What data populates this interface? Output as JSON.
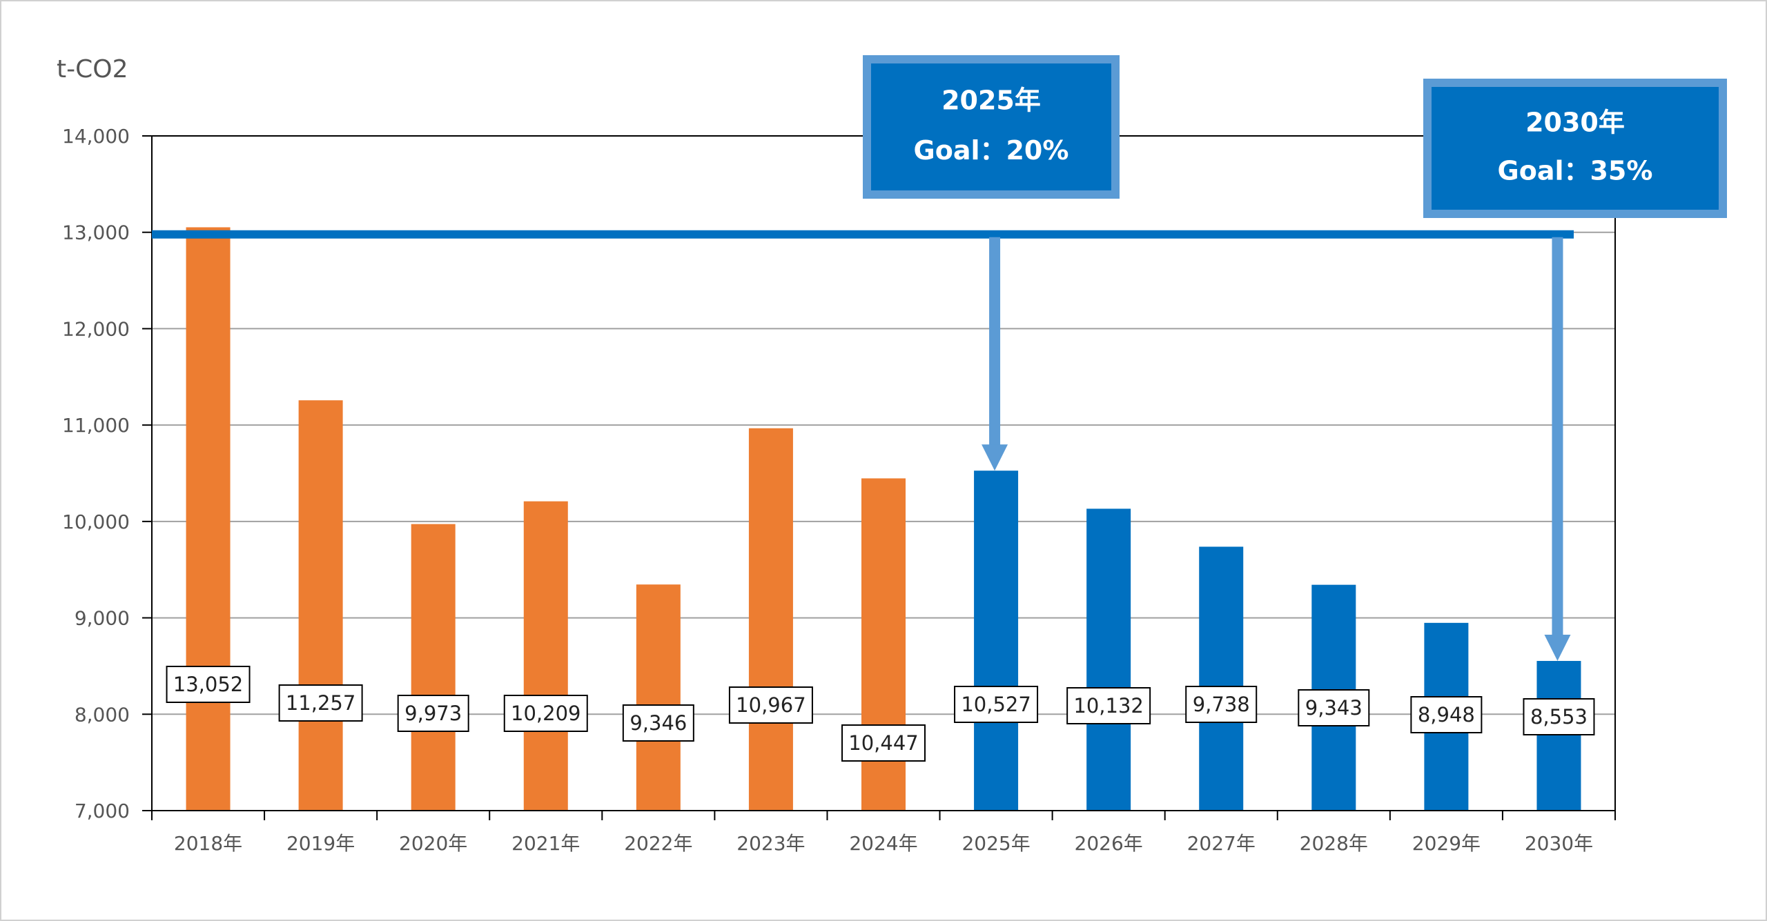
{
  "chart_data": {
    "type": "bar",
    "unit_label": "t-CO2",
    "categories": [
      "2018年",
      "2019年",
      "2020年",
      "2021年",
      "2022年",
      "2023年",
      "2024年",
      "2025年",
      "2026年",
      "2027年",
      "2028年",
      "2029年",
      "2030年"
    ],
    "values": [
      13052,
      11257,
      9973,
      10209,
      9346,
      10967,
      10447,
      10527,
      10132,
      9738,
      9343,
      8948,
      8553
    ],
    "value_labels": [
      "13,052",
      "11,257",
      "9,973",
      "10,209",
      "9,346",
      "10,967",
      "10,447",
      "10,527",
      "10,132",
      "9,738",
      "9,343",
      "8,948",
      "8,553"
    ],
    "y_ticks": [
      "7,000",
      "8,000",
      "9,000",
      "10,000",
      "11,000",
      "12,000",
      "13,000",
      "14,000"
    ],
    "y_tick_values": [
      7000,
      8000,
      9000,
      10000,
      11000,
      12000,
      13000,
      14000
    ],
    "ylim": [
      7000,
      14000
    ],
    "grid": true,
    "colors": {
      "actual": "#ED7D31",
      "target": "#0070C0",
      "arrow": "#5B9BD5",
      "baseline": "#0070C0",
      "box_border": "#5B9BD5"
    },
    "actual_count": 7,
    "baseline_value": 13000,
    "goals": [
      {
        "year": "2025年",
        "text": "Goal：20%",
        "category_index": 7,
        "target_value": 10527
      },
      {
        "year": "2030年",
        "text": "Goal：35%",
        "category_index": 12,
        "target_value": 8553
      }
    ]
  }
}
